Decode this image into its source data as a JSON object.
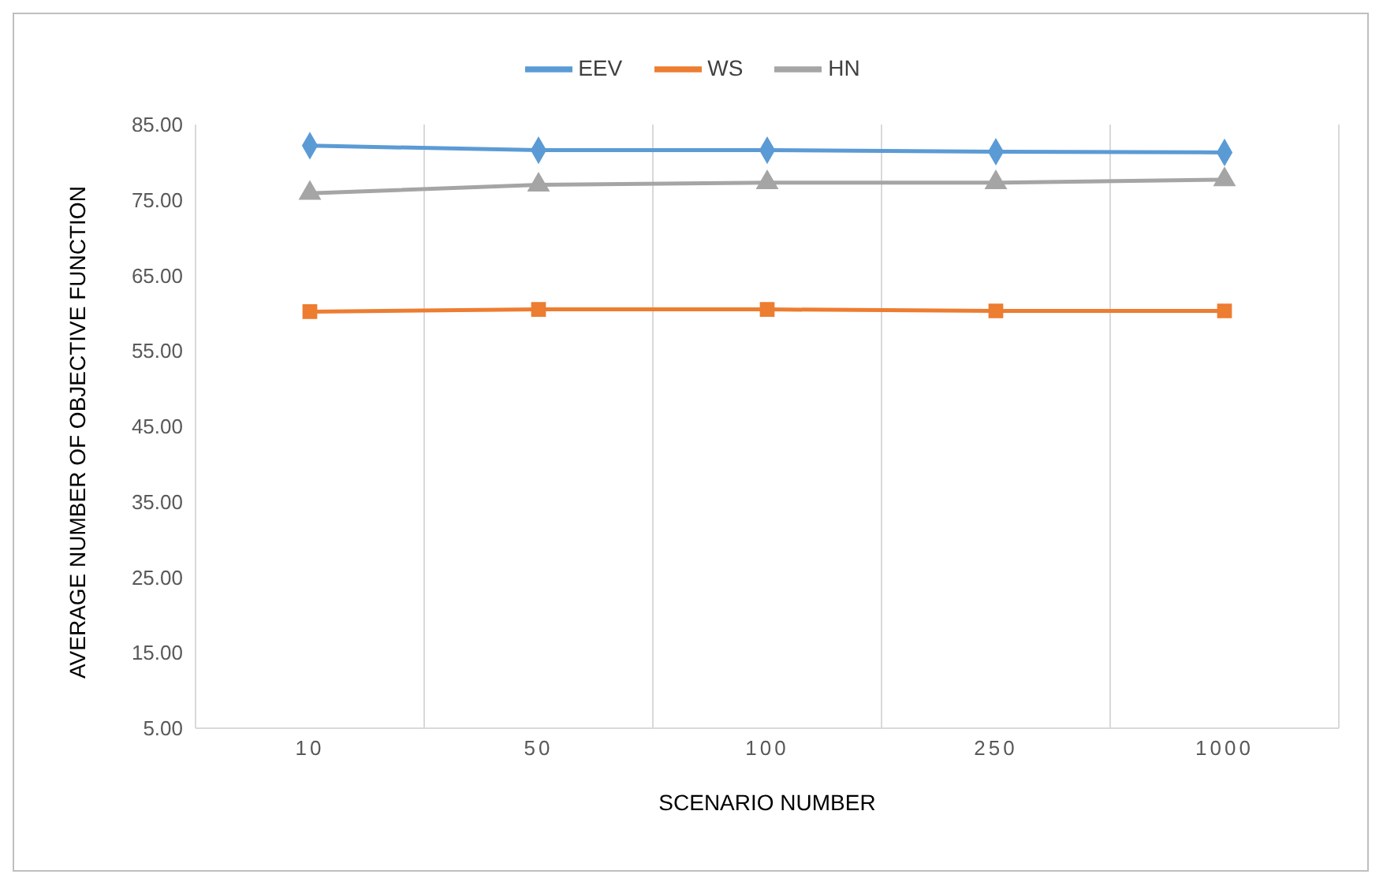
{
  "chart_data": {
    "type": "line",
    "xlabel": "SCENARIO NUMBER",
    "ylabel": "AVERAGE NUMBER OF OBJECTIVE FUNCTION",
    "categories": [
      "10",
      "50",
      "100",
      "250",
      "1000"
    ],
    "series": [
      {
        "name": "EEV",
        "color": "#5b9bd5",
        "marker": "diamond",
        "values": [
          82.2,
          81.6,
          81.6,
          81.4,
          81.3
        ]
      },
      {
        "name": "WS",
        "color": "#ed7d31",
        "marker": "square",
        "values": [
          60.2,
          60.5,
          60.5,
          60.3,
          60.3
        ]
      },
      {
        "name": "HN",
        "color": "#a5a5a5",
        "marker": "triangle",
        "values": [
          75.9,
          77.0,
          77.3,
          77.3,
          77.7
        ]
      }
    ],
    "ylim": [
      5,
      85
    ],
    "yticks": [
      {
        "value": 5,
        "label": "5.00"
      },
      {
        "value": 15,
        "label": "15.00"
      },
      {
        "value": 25,
        "label": "25.00"
      },
      {
        "value": 35,
        "label": "35.00"
      },
      {
        "value": 45,
        "label": "45.00"
      },
      {
        "value": 55,
        "label": "55.00"
      },
      {
        "value": 65,
        "label": "65.00"
      },
      {
        "value": 75,
        "label": "75.00"
      },
      {
        "value": 85,
        "label": "85.00"
      }
    ],
    "grid": "x",
    "legend": "top",
    "line_style": "solid"
  }
}
